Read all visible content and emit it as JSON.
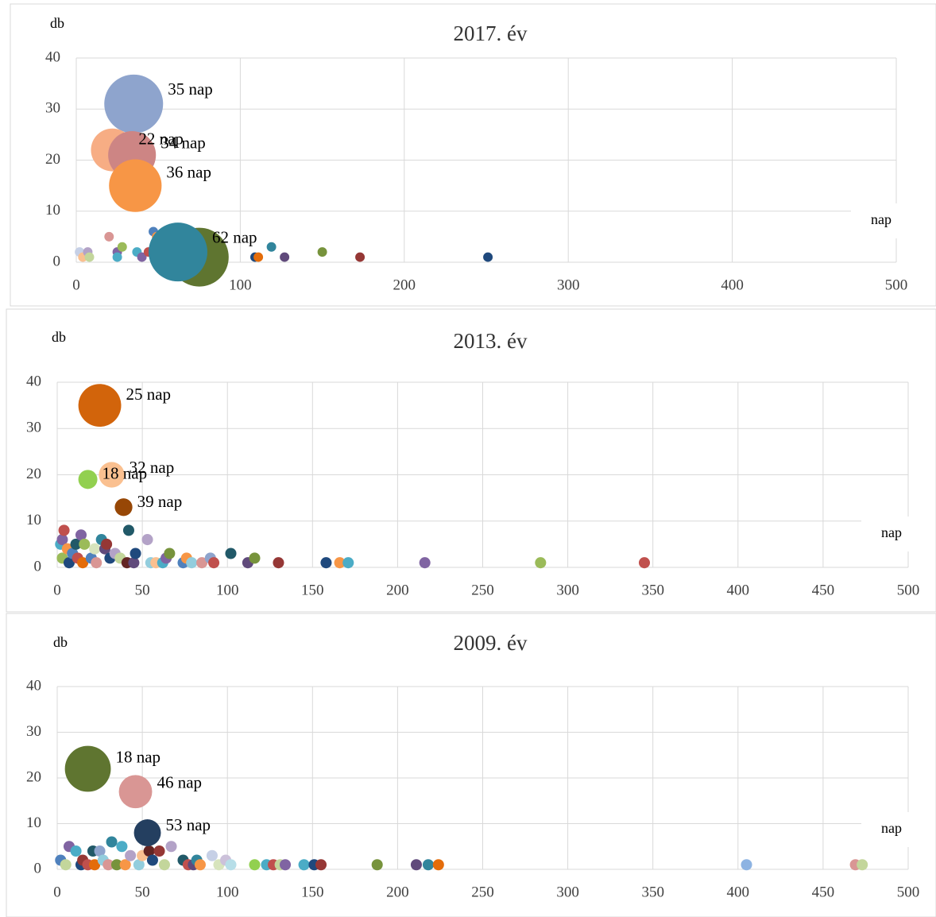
{
  "chart_data": [
    {
      "type": "bubble",
      "title": "2017. év",
      "x_label": "nap",
      "y_label": "db",
      "grid": true,
      "xlim": [
        0,
        500
      ],
      "xticks": [
        0,
        100,
        200,
        300,
        400,
        500
      ],
      "ylim": [
        0,
        40
      ],
      "yticks": [
        0,
        10,
        20,
        30,
        40
      ],
      "x": [
        2,
        4,
        7,
        8,
        20,
        25,
        25,
        28,
        37,
        40,
        44,
        47,
        49,
        50,
        54,
        58,
        60,
        63,
        64,
        109,
        111,
        119,
        127,
        150,
        173,
        251,
        35,
        22,
        34,
        36,
        75,
        62
      ],
      "values": [
        2,
        1,
        2,
        1,
        5,
        2,
        1,
        3,
        2,
        1,
        2,
        6,
        5,
        3,
        1,
        1,
        1,
        4,
        1,
        1,
        1,
        3,
        1,
        2,
        1,
        1,
        31,
        22,
        21,
        15,
        1,
        2
      ],
      "sizes": [
        2.6,
        2.6,
        2.6,
        2.6,
        2.6,
        2.6,
        2.6,
        2.6,
        2.6,
        2.6,
        2.6,
        2.6,
        2.6,
        2.6,
        2.6,
        2.6,
        2.6,
        2.6,
        2.6,
        2.6,
        2.6,
        2.6,
        2.6,
        2.6,
        2.6,
        2.6,
        100,
        53,
        66,
        80,
        100,
        100
      ],
      "colors": [
        "#c6d0e6",
        "#fac090",
        "#b3a2c7",
        "#c3d69b",
        "#d99694",
        "#8064a2",
        "#4bacc6",
        "#9bbb59",
        "#4bacc6",
        "#8064a2",
        "#c0504d",
        "#4f81bd",
        "#f79646",
        "#4bacc6",
        "#8064a2",
        "#c3d69b",
        "#9bbb59",
        "#8ea4cd",
        "#e46c0a",
        "#1f497d",
        "#e46c0a",
        "#31859c",
        "#604a7b",
        "#77933c",
        "#953735",
        "#1f497d",
        "#8ea4cd",
        "#f7ad84",
        "#cd8584",
        "#f79646",
        "#5f7530",
        "#31859c"
      ],
      "data_labels": [
        null,
        null,
        null,
        null,
        null,
        null,
        null,
        null,
        null,
        null,
        null,
        null,
        null,
        null,
        null,
        null,
        null,
        null,
        null,
        null,
        null,
        null,
        null,
        null,
        null,
        null,
        "35 nap",
        "22 nap",
        "34 nap",
        "36 nap",
        null,
        "62 nap"
      ]
    },
    {
      "type": "bubble",
      "title": "2013. év",
      "x_label": "nap",
      "y_label": "db",
      "grid": true,
      "xlim": [
        0,
        500
      ],
      "xticks": [
        0,
        50,
        100,
        150,
        200,
        250,
        300,
        350,
        400,
        450,
        500
      ],
      "ylim": [
        0,
        40
      ],
      "yticks": [
        0,
        10,
        20,
        30,
        40
      ],
      "x": [
        2,
        3,
        4,
        3,
        6,
        7,
        9,
        11,
        12,
        14,
        15,
        16,
        20,
        22,
        23,
        26,
        28,
        29,
        31,
        34,
        37,
        41,
        42,
        45,
        46,
        53,
        55,
        58,
        62,
        64,
        66,
        74,
        76,
        79,
        85,
        90,
        92,
        102,
        112,
        116,
        130,
        158,
        166,
        171,
        216,
        284,
        345,
        25,
        32,
        18,
        39
      ],
      "values": [
        5,
        6,
        8,
        2,
        4,
        1,
        3,
        5,
        2,
        7,
        1,
        5,
        2,
        4,
        1,
        6,
        4,
        5,
        2,
        3,
        2,
        1,
        8,
        1,
        3,
        6,
        1,
        1,
        1,
        2,
        3,
        1,
        2,
        1,
        1,
        2,
        1,
        3,
        1,
        2,
        1,
        1,
        1,
        1,
        1,
        1,
        1,
        35,
        20,
        19,
        13
      ],
      "sizes": [
        3.6,
        3.6,
        3.6,
        3.6,
        3.6,
        3.6,
        3.6,
        3.6,
        3.6,
        3.6,
        3.6,
        3.6,
        3.6,
        3.6,
        3.6,
        3.6,
        3.6,
        3.6,
        3.6,
        3.6,
        3.6,
        3.6,
        3.6,
        3.6,
        3.6,
        3.6,
        3.6,
        3.6,
        3.6,
        3.6,
        3.6,
        3.6,
        3.6,
        3.6,
        3.6,
        3.6,
        3.6,
        3.6,
        3.6,
        3.6,
        3.6,
        3.6,
        3.6,
        3.6,
        3.6,
        3.6,
        3.6,
        53,
        19,
        10.5,
        9
      ],
      "colors": [
        "#4bacc6",
        "#8064a2",
        "#c0504d",
        "#9bbb59",
        "#f79646",
        "#1f497d",
        "#4f81bd",
        "#215968",
        "#c0504d",
        "#8064a2",
        "#e46c0a",
        "#9bbb59",
        "#4f81bd",
        "#d7e4bd",
        "#d99694",
        "#31859c",
        "#604a7b",
        "#953735",
        "#1f497d",
        "#b3a2c7",
        "#c3d69b",
        "#632523",
        "#215968",
        "#604a7b",
        "#1f497d",
        "#b3a2c7",
        "#93cddd",
        "#fac090",
        "#4bacc6",
        "#8064a2",
        "#77933c",
        "#4f81bd",
        "#f79646",
        "#93cddd",
        "#d99694",
        "#8ea4cd",
        "#c0504d",
        "#215968",
        "#604a7b",
        "#77933c",
        "#953735",
        "#1f497d",
        "#f79646",
        "#4bacc6",
        "#8064a2",
        "#9bbb59",
        "#c0504d",
        "#d2640b",
        "#fac090",
        "#92d050",
        "#974706"
      ],
      "data_labels": [
        null,
        null,
        null,
        null,
        null,
        null,
        null,
        null,
        null,
        null,
        null,
        null,
        null,
        null,
        null,
        null,
        null,
        null,
        null,
        null,
        null,
        null,
        null,
        null,
        null,
        null,
        null,
        null,
        null,
        null,
        null,
        null,
        null,
        null,
        null,
        null,
        null,
        null,
        null,
        null,
        null,
        null,
        null,
        null,
        null,
        null,
        null,
        "25 nap",
        "32 nap",
        "18 nap",
        "39 nap"
      ]
    },
    {
      "type": "bubble",
      "title": "2009. év",
      "x_label": "nap",
      "y_label": "db",
      "grid": true,
      "xlim": [
        0,
        500
      ],
      "xticks": [
        0,
        50,
        100,
        150,
        200,
        250,
        300,
        350,
        400,
        450,
        500
      ],
      "ylim": [
        0,
        40
      ],
      "yticks": [
        0,
        10,
        20,
        30,
        40
      ],
      "x": [
        2,
        5,
        7,
        11,
        14,
        15,
        18,
        21,
        22,
        25,
        27,
        30,
        32,
        35,
        38,
        40,
        43,
        48,
        50,
        54,
        56,
        60,
        63,
        67,
        74,
        77,
        80,
        82,
        84,
        91,
        95,
        99,
        102,
        116,
        123,
        127,
        131,
        134,
        145,
        151,
        155,
        188,
        211,
        218,
        224,
        405,
        469,
        473,
        18,
        46,
        53
      ],
      "values": [
        2,
        1,
        5,
        4,
        1,
        2,
        1,
        4,
        1,
        4,
        2,
        1,
        6,
        1,
        5,
        1,
        3,
        1,
        3,
        4,
        2,
        4,
        1,
        5,
        2,
        1,
        1,
        2,
        1,
        3,
        1,
        2,
        1,
        1,
        1,
        1,
        1,
        1,
        1,
        1,
        1,
        1,
        1,
        1,
        1,
        1,
        1,
        1,
        22,
        17,
        8
      ],
      "sizes": [
        3.6,
        3.6,
        3.6,
        3.6,
        3.6,
        3.6,
        3.6,
        3.6,
        3.6,
        3.6,
        3.6,
        3.6,
        3.6,
        3.6,
        3.6,
        3.6,
        3.6,
        3.6,
        3.6,
        3.6,
        3.6,
        3.6,
        3.6,
        3.6,
        3.6,
        3.6,
        3.6,
        3.6,
        3.6,
        3.6,
        3.6,
        3.6,
        3.6,
        3.6,
        3.6,
        3.6,
        3.6,
        3.6,
        3.6,
        3.6,
        3.6,
        3.6,
        3.6,
        3.6,
        3.6,
        3.6,
        3.6,
        3.6,
        61,
        32,
        21
      ],
      "colors": [
        "#4f81bd",
        "#c3d69b",
        "#8064a2",
        "#4bacc6",
        "#1f497d",
        "#953735",
        "#c0504d",
        "#215968",
        "#e46c0a",
        "#8ea4cd",
        "#93cddd",
        "#d99694",
        "#31859c",
        "#77933c",
        "#4bacc6",
        "#f79646",
        "#b3a2c7",
        "#93cddd",
        "#fac090",
        "#632523",
        "#1f497d",
        "#953735",
        "#c3d69b",
        "#b3a2c7",
        "#215968",
        "#c0504d",
        "#604a7b",
        "#31859c",
        "#f79646",
        "#c6d0e6",
        "#d7e4bd",
        "#ccc1da",
        "#b7dee8",
        "#92d050",
        "#4bacc6",
        "#c0504d",
        "#c3d69b",
        "#8064a2",
        "#4bacc6",
        "#1f497d",
        "#953735",
        "#77933c",
        "#604a7b",
        "#31859c",
        "#e46c0a",
        "#8db3e2",
        "#d99694",
        "#c3d69b",
        "#5f7530",
        "#d99694",
        "#243f60"
      ],
      "data_labels": [
        null,
        null,
        null,
        null,
        null,
        null,
        null,
        null,
        null,
        null,
        null,
        null,
        null,
        null,
        null,
        null,
        null,
        null,
        null,
        null,
        null,
        null,
        null,
        null,
        null,
        null,
        null,
        null,
        null,
        null,
        null,
        null,
        null,
        null,
        null,
        null,
        null,
        null,
        null,
        null,
        null,
        null,
        null,
        null,
        null,
        null,
        null,
        null,
        "18 nap",
        "46 nap",
        "53 nap"
      ]
    }
  ]
}
